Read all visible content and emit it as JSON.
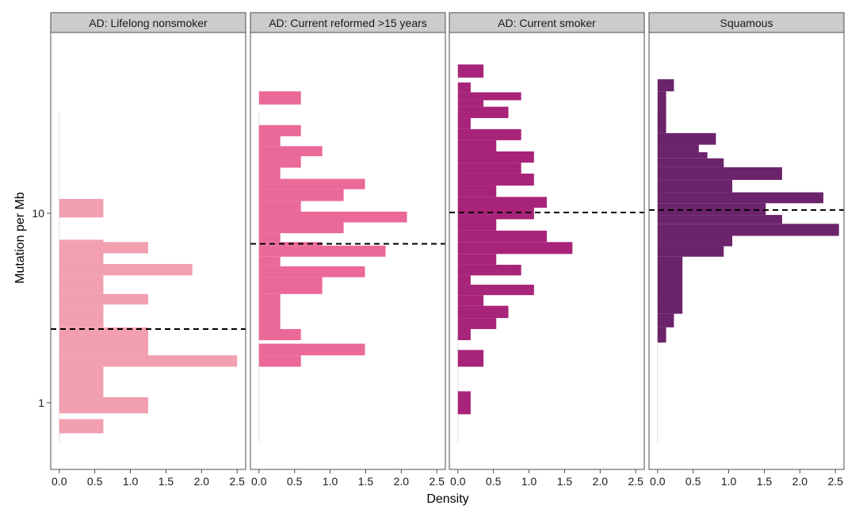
{
  "chart_data": {
    "type": "bar",
    "orientation": "horizontal",
    "xlabel": "Density",
    "ylabel": "Mutation per Mb",
    "y_scale": "log10",
    "y_ticks": [
      1,
      10
    ],
    "y_tick_labels": [
      "1",
      "10"
    ],
    "ylim": [
      0.62,
      50
    ],
    "x_ticks": [
      0,
      0.5,
      1,
      1.5,
      2,
      2.5
    ],
    "x_tick_labels": [
      "0.0",
      "0.5",
      "1.0",
      "1.5",
      "2.0",
      "2.5"
    ],
    "xlim": [
      -0.12,
      2.62
    ],
    "grid": false,
    "legend": "none",
    "bin_width_log10": 0.0625,
    "facets": [
      {
        "label": "AD: Lifelong nonsmoker",
        "color": "#f29fb0",
        "median": 2.45,
        "bins": [
          {
            "low": 0.69,
            "high": 0.82,
            "density": 0.62
          },
          {
            "low": 0.88,
            "high": 1.07,
            "density": 1.25
          },
          {
            "low": 1.07,
            "high": 1.55,
            "density": 0.62
          },
          {
            "low": 1.55,
            "high": 1.78,
            "density": 2.5
          },
          {
            "low": 1.78,
            "high": 2.5,
            "density": 1.25
          },
          {
            "low": 2.5,
            "high": 3.3,
            "density": 0.62
          },
          {
            "low": 3.3,
            "high": 3.75,
            "density": 1.25
          },
          {
            "low": 3.75,
            "high": 4.7,
            "density": 0.62
          },
          {
            "low": 4.7,
            "high": 5.4,
            "density": 1.87
          },
          {
            "low": 5.4,
            "high": 6.15,
            "density": 0.62
          },
          {
            "low": 6.15,
            "high": 7.05,
            "density": 1.25
          },
          {
            "low": 7.05,
            "high": 7.25,
            "density": 0.62
          },
          {
            "low": 9.5,
            "high": 11.9,
            "density": 0.62
          }
        ]
      },
      {
        "label": "AD: Current reformed >15 years",
        "color": "#eb6999",
        "median": 6.9,
        "bins": [
          {
            "low": 1.55,
            "high": 1.78,
            "density": 0.59
          },
          {
            "low": 1.78,
            "high": 2.05,
            "density": 1.49
          },
          {
            "low": 2.14,
            "high": 2.45,
            "density": 0.59
          },
          {
            "low": 2.45,
            "high": 3.75,
            "density": 0.3
          },
          {
            "low": 3.75,
            "high": 4.6,
            "density": 0.89
          },
          {
            "low": 4.6,
            "high": 5.25,
            "density": 1.49
          },
          {
            "low": 5.25,
            "high": 5.9,
            "density": 0.3
          },
          {
            "low": 5.9,
            "high": 6.75,
            "density": 1.78
          },
          {
            "low": 6.75,
            "high": 7.05,
            "density": 0.89
          },
          {
            "low": 7.05,
            "high": 7.85,
            "density": 0.3
          },
          {
            "low": 7.85,
            "high": 8.95,
            "density": 1.19
          },
          {
            "low": 8.95,
            "high": 10.2,
            "density": 2.08
          },
          {
            "low": 10.2,
            "high": 11.6,
            "density": 0.59
          },
          {
            "low": 11.6,
            "high": 13.4,
            "density": 1.19
          },
          {
            "low": 13.4,
            "high": 15.2,
            "density": 1.49
          },
          {
            "low": 15.2,
            "high": 17.4,
            "density": 0.3
          },
          {
            "low": 17.4,
            "high": 20.0,
            "density": 0.59
          },
          {
            "low": 20.0,
            "high": 22.6,
            "density": 0.89
          },
          {
            "low": 22.6,
            "high": 25.5,
            "density": 0.3
          },
          {
            "low": 25.5,
            "high": 29.2,
            "density": 0.59
          },
          {
            "low": 37.5,
            "high": 44.0,
            "density": 0.59
          }
        ]
      },
      {
        "label": "AD: Current smoker",
        "color": "#a8237a",
        "median": 10.1,
        "bins": [
          {
            "low": 0.87,
            "high": 1.15,
            "density": 0.18
          },
          {
            "low": 1.55,
            "high": 1.9,
            "density": 0.36
          },
          {
            "low": 2.14,
            "high": 2.45,
            "density": 0.18
          },
          {
            "low": 2.45,
            "high": 2.8,
            "density": 0.54
          },
          {
            "low": 2.8,
            "high": 3.25,
            "density": 0.71
          },
          {
            "low": 3.25,
            "high": 3.7,
            "density": 0.36
          },
          {
            "low": 3.7,
            "high": 4.2,
            "density": 1.07
          },
          {
            "low": 4.2,
            "high": 4.7,
            "density": 0.18
          },
          {
            "low": 4.7,
            "high": 5.35,
            "density": 0.89
          },
          {
            "low": 5.35,
            "high": 6.1,
            "density": 0.54
          },
          {
            "low": 6.1,
            "high": 7.05,
            "density": 1.61
          },
          {
            "low": 7.05,
            "high": 8.1,
            "density": 1.25
          },
          {
            "low": 8.1,
            "high": 9.3,
            "density": 0.54
          },
          {
            "low": 9.3,
            "high": 10.7,
            "density": 1.07
          },
          {
            "low": 10.7,
            "high": 12.2,
            "density": 1.25
          },
          {
            "low": 12.2,
            "high": 14.0,
            "density": 0.54
          },
          {
            "low": 14.0,
            "high": 16.2,
            "density": 1.07
          },
          {
            "low": 16.2,
            "high": 18.5,
            "density": 0.89
          },
          {
            "low": 18.5,
            "high": 21.2,
            "density": 1.07
          },
          {
            "low": 21.2,
            "high": 24.3,
            "density": 0.54
          },
          {
            "low": 24.3,
            "high": 27.8,
            "density": 0.89
          },
          {
            "low": 27.8,
            "high": 31.8,
            "density": 0.18
          },
          {
            "low": 31.8,
            "high": 36.5,
            "density": 0.71
          },
          {
            "low": 36.5,
            "high": 39.5,
            "density": 0.36
          },
          {
            "low": 39.5,
            "high": 43.5,
            "density": 0.89
          },
          {
            "low": 43.5,
            "high": 49.0,
            "density": 0.18
          },
          {
            "low": 52.0,
            "high": 61.0,
            "density": 0.36
          }
        ]
      },
      {
        "label": "Squamous",
        "color": "#6b236b",
        "median": 10.4,
        "bins": [
          {
            "low": 2.08,
            "high": 2.5,
            "density": 0.12
          },
          {
            "low": 2.5,
            "high": 2.95,
            "density": 0.23
          },
          {
            "low": 2.95,
            "high": 3.35,
            "density": 0.35
          },
          {
            "low": 3.35,
            "high": 5.9,
            "density": 0.35
          },
          {
            "low": 5.9,
            "high": 6.7,
            "density": 0.93
          },
          {
            "low": 6.7,
            "high": 7.6,
            "density": 1.05
          },
          {
            "low": 7.6,
            "high": 8.8,
            "density": 2.55
          },
          {
            "low": 8.8,
            "high": 9.8,
            "density": 1.75
          },
          {
            "low": 9.8,
            "high": 11.3,
            "density": 1.52
          },
          {
            "low": 11.3,
            "high": 12.9,
            "density": 2.33
          },
          {
            "low": 12.9,
            "high": 15.0,
            "density": 1.05
          },
          {
            "low": 15.0,
            "high": 17.5,
            "density": 1.75
          },
          {
            "low": 17.5,
            "high": 19.5,
            "density": 0.93
          },
          {
            "low": 19.5,
            "high": 21.0,
            "density": 0.7
          },
          {
            "low": 21.0,
            "high": 23.0,
            "density": 0.58
          },
          {
            "low": 23.0,
            "high": 26.5,
            "density": 0.82
          },
          {
            "low": 26.5,
            "high": 44.0,
            "density": 0.12
          },
          {
            "low": 44.0,
            "high": 51.0,
            "density": 0.23
          }
        ]
      }
    ]
  }
}
